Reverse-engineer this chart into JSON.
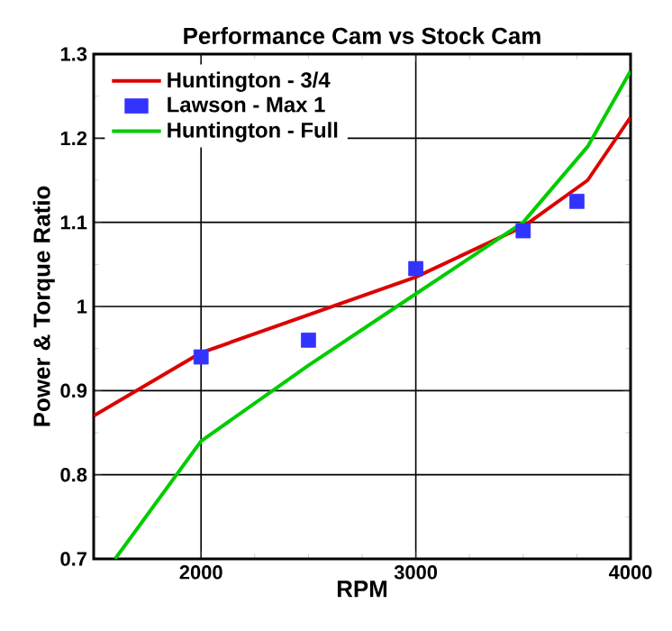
{
  "chart_data": {
    "type": "line",
    "title": "Performance Cam vs Stock Cam",
    "xlabel": "RPM",
    "ylabel": "Power & Torque Ratio",
    "xlim": [
      1500,
      4000
    ],
    "xticks": [
      2000,
      3000,
      4000
    ],
    "ylim": [
      0.7,
      1.3
    ],
    "yticks": [
      0.7,
      0.8,
      0.9,
      1,
      1.1,
      1.2,
      1.3
    ],
    "grid": true,
    "legend": "top left",
    "series": [
      {
        "name": "Huntington - 3/4",
        "color": "#dd0000",
        "x": [
          1500,
          2000,
          2500,
          3000,
          3500,
          3800,
          4000
        ],
        "values": [
          0.87,
          0.945,
          0.99,
          1.035,
          1.095,
          1.15,
          1.225
        ]
      },
      {
        "name": "Lawson - Max 1",
        "color": "#3333ff",
        "type": "scatter",
        "marker": "square",
        "x": [
          2000,
          2500,
          3000,
          3500,
          3750
        ],
        "values": [
          0.94,
          0.96,
          1.045,
          1.09,
          1.125
        ]
      },
      {
        "name": "Huntington - Full",
        "color": "#00cc00",
        "x": [
          1600,
          2000,
          2500,
          3000,
          3500,
          3800,
          4000
        ],
        "values": [
          0.7,
          0.84,
          0.93,
          1.015,
          1.1,
          1.19,
          1.28
        ]
      }
    ]
  }
}
